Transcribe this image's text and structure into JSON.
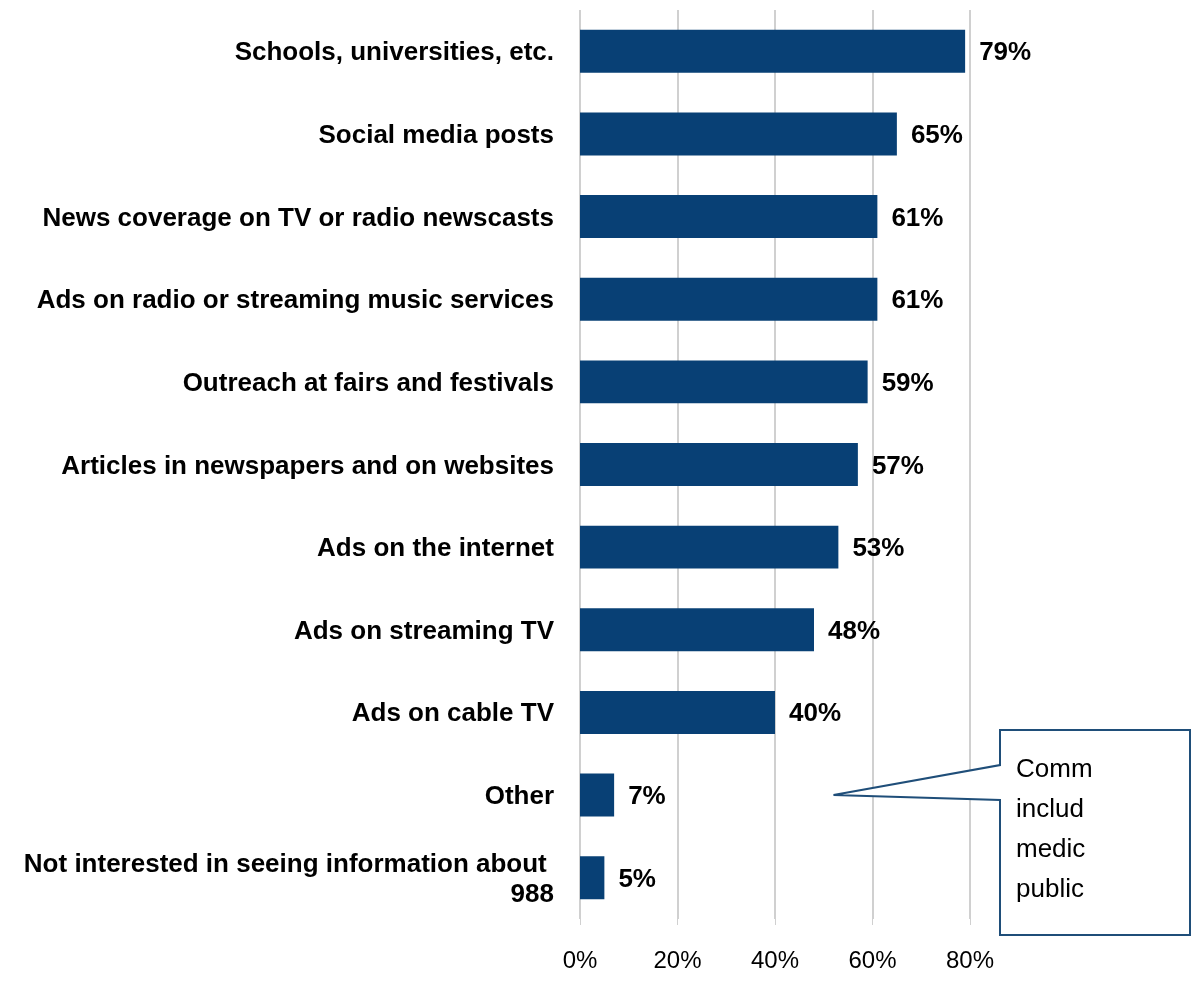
{
  "chart_data": {
    "type": "bar",
    "orientation": "horizontal",
    "categories": [
      "Schools, universities, etc.",
      "Social media posts",
      "News coverage on TV or radio newscasts",
      "Ads on radio or streaming music services",
      "Outreach at fairs and festivals",
      "Articles in newspapers and on websites",
      "Ads on the internet",
      "Ads on streaming TV",
      "Ads on cable TV",
      "Other",
      "Not interested in seeing information about 988"
    ],
    "values": [
      79,
      65,
      61,
      61,
      59,
      57,
      53,
      48,
      40,
      7,
      5
    ],
    "value_labels": [
      "79%",
      "65%",
      "61%",
      "61%",
      "59%",
      "57%",
      "53%",
      "48%",
      "40%",
      "7%",
      "5%"
    ],
    "color": "#084075",
    "xlim": [
      0,
      80
    ],
    "xticks": [
      {
        "value": 0,
        "label": "0%"
      },
      {
        "value": 20,
        "label": "20%"
      },
      {
        "value": 40,
        "label": "40%"
      },
      {
        "value": 60,
        "label": "60%"
      },
      {
        "value": 80,
        "label": "80%"
      }
    ],
    "grid": "x",
    "annotations": [
      "Comm\ninclud\nmedic\npublic"
    ]
  }
}
